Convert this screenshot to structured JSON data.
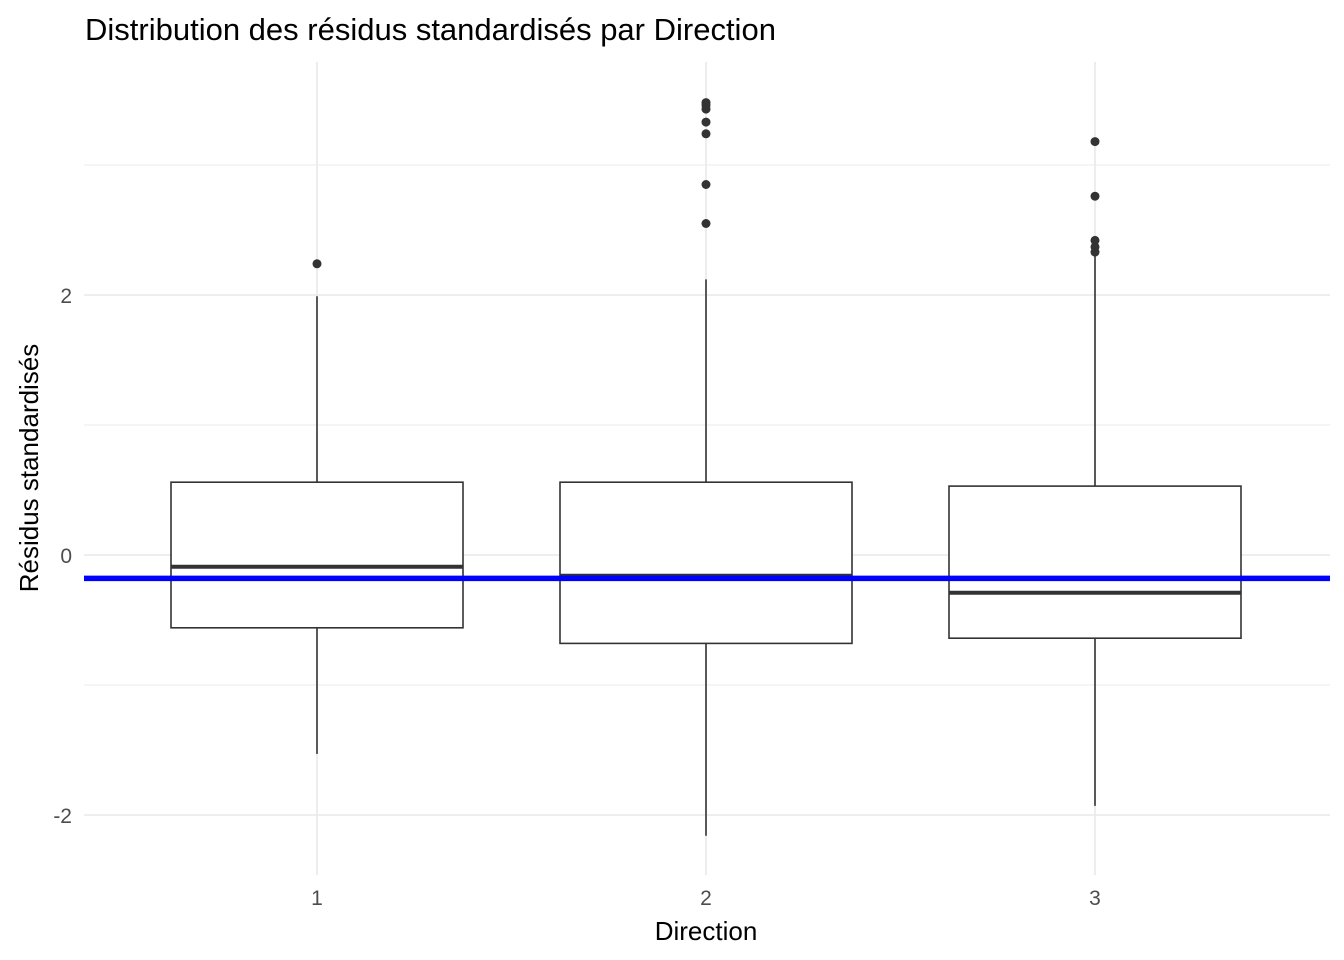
{
  "chart_data": {
    "type": "boxplot",
    "title": "Distribution des résidus standardisés par Direction",
    "xlabel": "Direction",
    "ylabel": "Résidus standardisés",
    "categories": [
      "1",
      "2",
      "3"
    ],
    "y_ticks": [
      -2,
      0,
      2
    ],
    "ylim": [
      -2.45,
      3.7
    ],
    "grid": true,
    "boxes": [
      {
        "category": "1",
        "whisker_low": -1.53,
        "q1": -0.56,
        "median": -0.09,
        "q3": 0.56,
        "whisker_high": 1.99,
        "outliers": [
          2.24
        ]
      },
      {
        "category": "2",
        "whisker_low": -2.16,
        "q1": -0.68,
        "median": -0.16,
        "q3": 0.56,
        "whisker_high": 2.12,
        "outliers": [
          2.55,
          2.85,
          3.24,
          3.33,
          3.43,
          3.46,
          3.48
        ]
      },
      {
        "category": "3",
        "whisker_low": -1.93,
        "q1": -0.64,
        "median": -0.29,
        "q3": 0.53,
        "whisker_high": 2.3,
        "outliers": [
          2.33,
          2.37,
          2.42,
          2.76,
          3.18
        ]
      }
    ],
    "reference_line": {
      "y": -0.18,
      "color": "#0000ff"
    },
    "colors": {
      "box_stroke": "#333333",
      "grid": "#ebebeb",
      "background": "#ffffff"
    }
  }
}
